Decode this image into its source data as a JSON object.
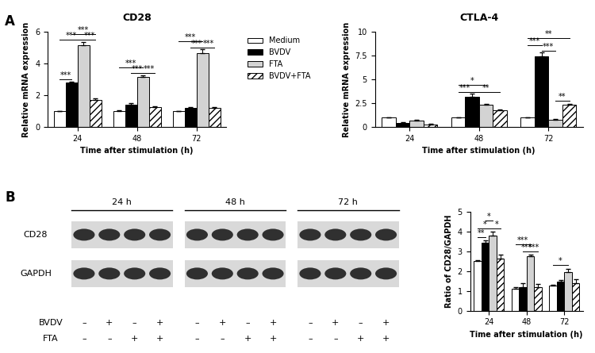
{
  "panels": [
    "A",
    "B"
  ],
  "chart_data": [
    {
      "type": "bar",
      "title": "CD28",
      "x_label": "Time after stimulation (h)",
      "y_label": "Relative mRNA expression",
      "categories": [
        "24",
        "48",
        "72"
      ],
      "legend": "upper left",
      "ylim": [
        0,
        6
      ],
      "yticks": [
        0,
        2,
        4,
        6
      ],
      "series": [
        {
          "name": "Medium",
          "color": "#ffffff",
          "values": [
            1.0,
            1.0,
            1.0
          ],
          "errors": [
            0.03,
            0.05,
            0.03
          ]
        },
        {
          "name": "BVDV",
          "color": "#000000",
          "values": [
            2.8,
            1.4,
            1.2
          ],
          "errors": [
            0.08,
            0.12,
            0.08
          ]
        },
        {
          "name": "FTA",
          "color": "#d3d3d3",
          "values": [
            5.15,
            3.15,
            4.65
          ],
          "errors": [
            0.2,
            0.1,
            0.25
          ]
        },
        {
          "name": "BVDV+FTA",
          "color": "#ffffff",
          "values": [
            1.7,
            1.25,
            1.2
          ],
          "errors": [
            0.12,
            0.07,
            0.05
          ]
        }
      ],
      "significance": [
        {
          "time": "24",
          "from": "Medium",
          "to": "BVDV",
          "y": 3.0,
          "label": "***"
        },
        {
          "time": "24",
          "from": "Medium",
          "to": "FTA",
          "y": 5.5,
          "label": "***"
        },
        {
          "time": "24",
          "from": "FTA",
          "to": "BVDV+FTA",
          "y": 5.5,
          "label": "***"
        },
        {
          "time": "24",
          "from": "BVDV",
          "to": "BVDV+FTA",
          "y": 5.85,
          "label": "***"
        },
        {
          "time": "48",
          "from": "Medium",
          "to": "FTA",
          "y": 3.75,
          "label": "***"
        },
        {
          "time": "48",
          "from": "BVDV",
          "to": "FTA",
          "y": 3.4,
          "label": "***"
        },
        {
          "time": "48",
          "from": "FTA",
          "to": "BVDV+FTA",
          "y": 3.4,
          "label": "***"
        },
        {
          "time": "72",
          "from": "Medium",
          "to": "FTA",
          "y": 5.4,
          "label": "***"
        },
        {
          "time": "72",
          "from": "BVDV",
          "to": "FTA",
          "y": 5.0,
          "label": "***"
        },
        {
          "time": "72",
          "from": "FTA",
          "to": "BVDV+FTA",
          "y": 5.0,
          "label": "***"
        }
      ]
    },
    {
      "type": "bar",
      "title": "CTLA-4",
      "x_label": "Time after stimulation (h)",
      "y_label": "Relative mRNA expression",
      "categories": [
        "24",
        "48",
        "72"
      ],
      "ylim": [
        0,
        10
      ],
      "yticks": [
        0,
        2.5,
        5,
        7.5,
        10
      ],
      "series": [
        {
          "name": "Medium",
          "color": "#ffffff",
          "values": [
            1.0,
            1.0,
            1.0
          ],
          "errors": [
            0.05,
            0.05,
            0.05
          ]
        },
        {
          "name": "BVDV",
          "color": "#000000",
          "values": [
            0.45,
            3.2,
            7.45
          ],
          "errors": [
            0.03,
            0.3,
            0.35
          ]
        },
        {
          "name": "FTA",
          "color": "#d3d3d3",
          "values": [
            0.7,
            2.35,
            0.8
          ],
          "errors": [
            0.04,
            0.08,
            0.05
          ]
        },
        {
          "name": "BVDV+FTA",
          "color": "#ffffff",
          "values": [
            0.3,
            1.8,
            2.35
          ],
          "errors": [
            0.03,
            0.05,
            0.12
          ]
        }
      ],
      "significance": [
        {
          "time": "48",
          "from": "Medium",
          "to": "FTA",
          "y": 4.4,
          "label": "*"
        },
        {
          "time": "48",
          "from": "Medium",
          "to": "BVDV",
          "y": 3.7,
          "label": "***"
        },
        {
          "time": "48",
          "from": "BVDV",
          "to": "BVDV+FTA",
          "y": 3.7,
          "label": "**"
        },
        {
          "time": "72",
          "from": "Medium",
          "to": "BVDV+FTA",
          "y": 9.3,
          "label": "**"
        },
        {
          "time": "72",
          "from": "Medium",
          "to": "BVDV",
          "y": 8.6,
          "label": "***"
        },
        {
          "time": "72",
          "from": "BVDV",
          "to": "FTA",
          "y": 8.0,
          "label": "***"
        },
        {
          "time": "72",
          "from": "FTA",
          "to": "BVDV+FTA",
          "y": 2.8,
          "label": "**"
        }
      ]
    },
    {
      "type": "bar",
      "x_label": "Time after stimulation (h)",
      "y_label": "Ratio of CD28/GAPDH",
      "categories": [
        "24",
        "48",
        "72"
      ],
      "ylim": [
        0,
        5
      ],
      "yticks": [
        0,
        1,
        2,
        3,
        4,
        5
      ],
      "series": [
        {
          "name": "Medium",
          "color": "#ffffff",
          "values": [
            2.5,
            1.1,
            1.25
          ],
          "errors": [
            0.07,
            0.08,
            0.05
          ]
        },
        {
          "name": "BVDV",
          "color": "#000000",
          "values": [
            3.45,
            1.2,
            1.45
          ],
          "errors": [
            0.1,
            0.2,
            0.1
          ]
        },
        {
          "name": "FTA",
          "color": "#d3d3d3",
          "values": [
            3.8,
            2.75,
            1.95
          ],
          "errors": [
            0.2,
            0.07,
            0.15
          ]
        },
        {
          "name": "BVDV+FTA",
          "color": "#ffffff",
          "values": [
            2.65,
            1.2,
            1.4
          ],
          "errors": [
            0.2,
            0.15,
            0.2
          ]
        }
      ],
      "significance": [
        {
          "time": "24",
          "from": "Medium",
          "to": "BVDV",
          "y": 3.7,
          "label": "**"
        },
        {
          "time": "24",
          "from": "Medium",
          "to": "FTA",
          "y": 4.15,
          "label": "*"
        },
        {
          "time": "24",
          "from": "FTA",
          "to": "BVDV+FTA",
          "y": 4.15,
          "label": "*"
        },
        {
          "time": "24",
          "from": "BVDV",
          "to": "FTA",
          "y": 4.55,
          "label": "*"
        },
        {
          "time": "48",
          "from": "Medium",
          "to": "FTA",
          "y": 3.35,
          "label": "***"
        },
        {
          "time": "48",
          "from": "BVDV",
          "to": "FTA",
          "y": 3.0,
          "label": "***"
        },
        {
          "time": "48",
          "from": "FTA",
          "to": "BVDV+FTA",
          "y": 3.0,
          "label": "***"
        },
        {
          "time": "72",
          "from": "Medium",
          "to": "FTA",
          "y": 2.3,
          "label": "*"
        }
      ]
    }
  ],
  "blot": {
    "time_labels": [
      "24 h",
      "48 h",
      "72 h"
    ],
    "rows": [
      "CD28",
      "GAPDH"
    ],
    "conditions": [
      {
        "label": "BVDV",
        "signs": [
          "–",
          "+",
          "–",
          "+"
        ]
      },
      {
        "label": "FTA",
        "signs": [
          "–",
          "–",
          "+",
          "+"
        ]
      }
    ]
  }
}
